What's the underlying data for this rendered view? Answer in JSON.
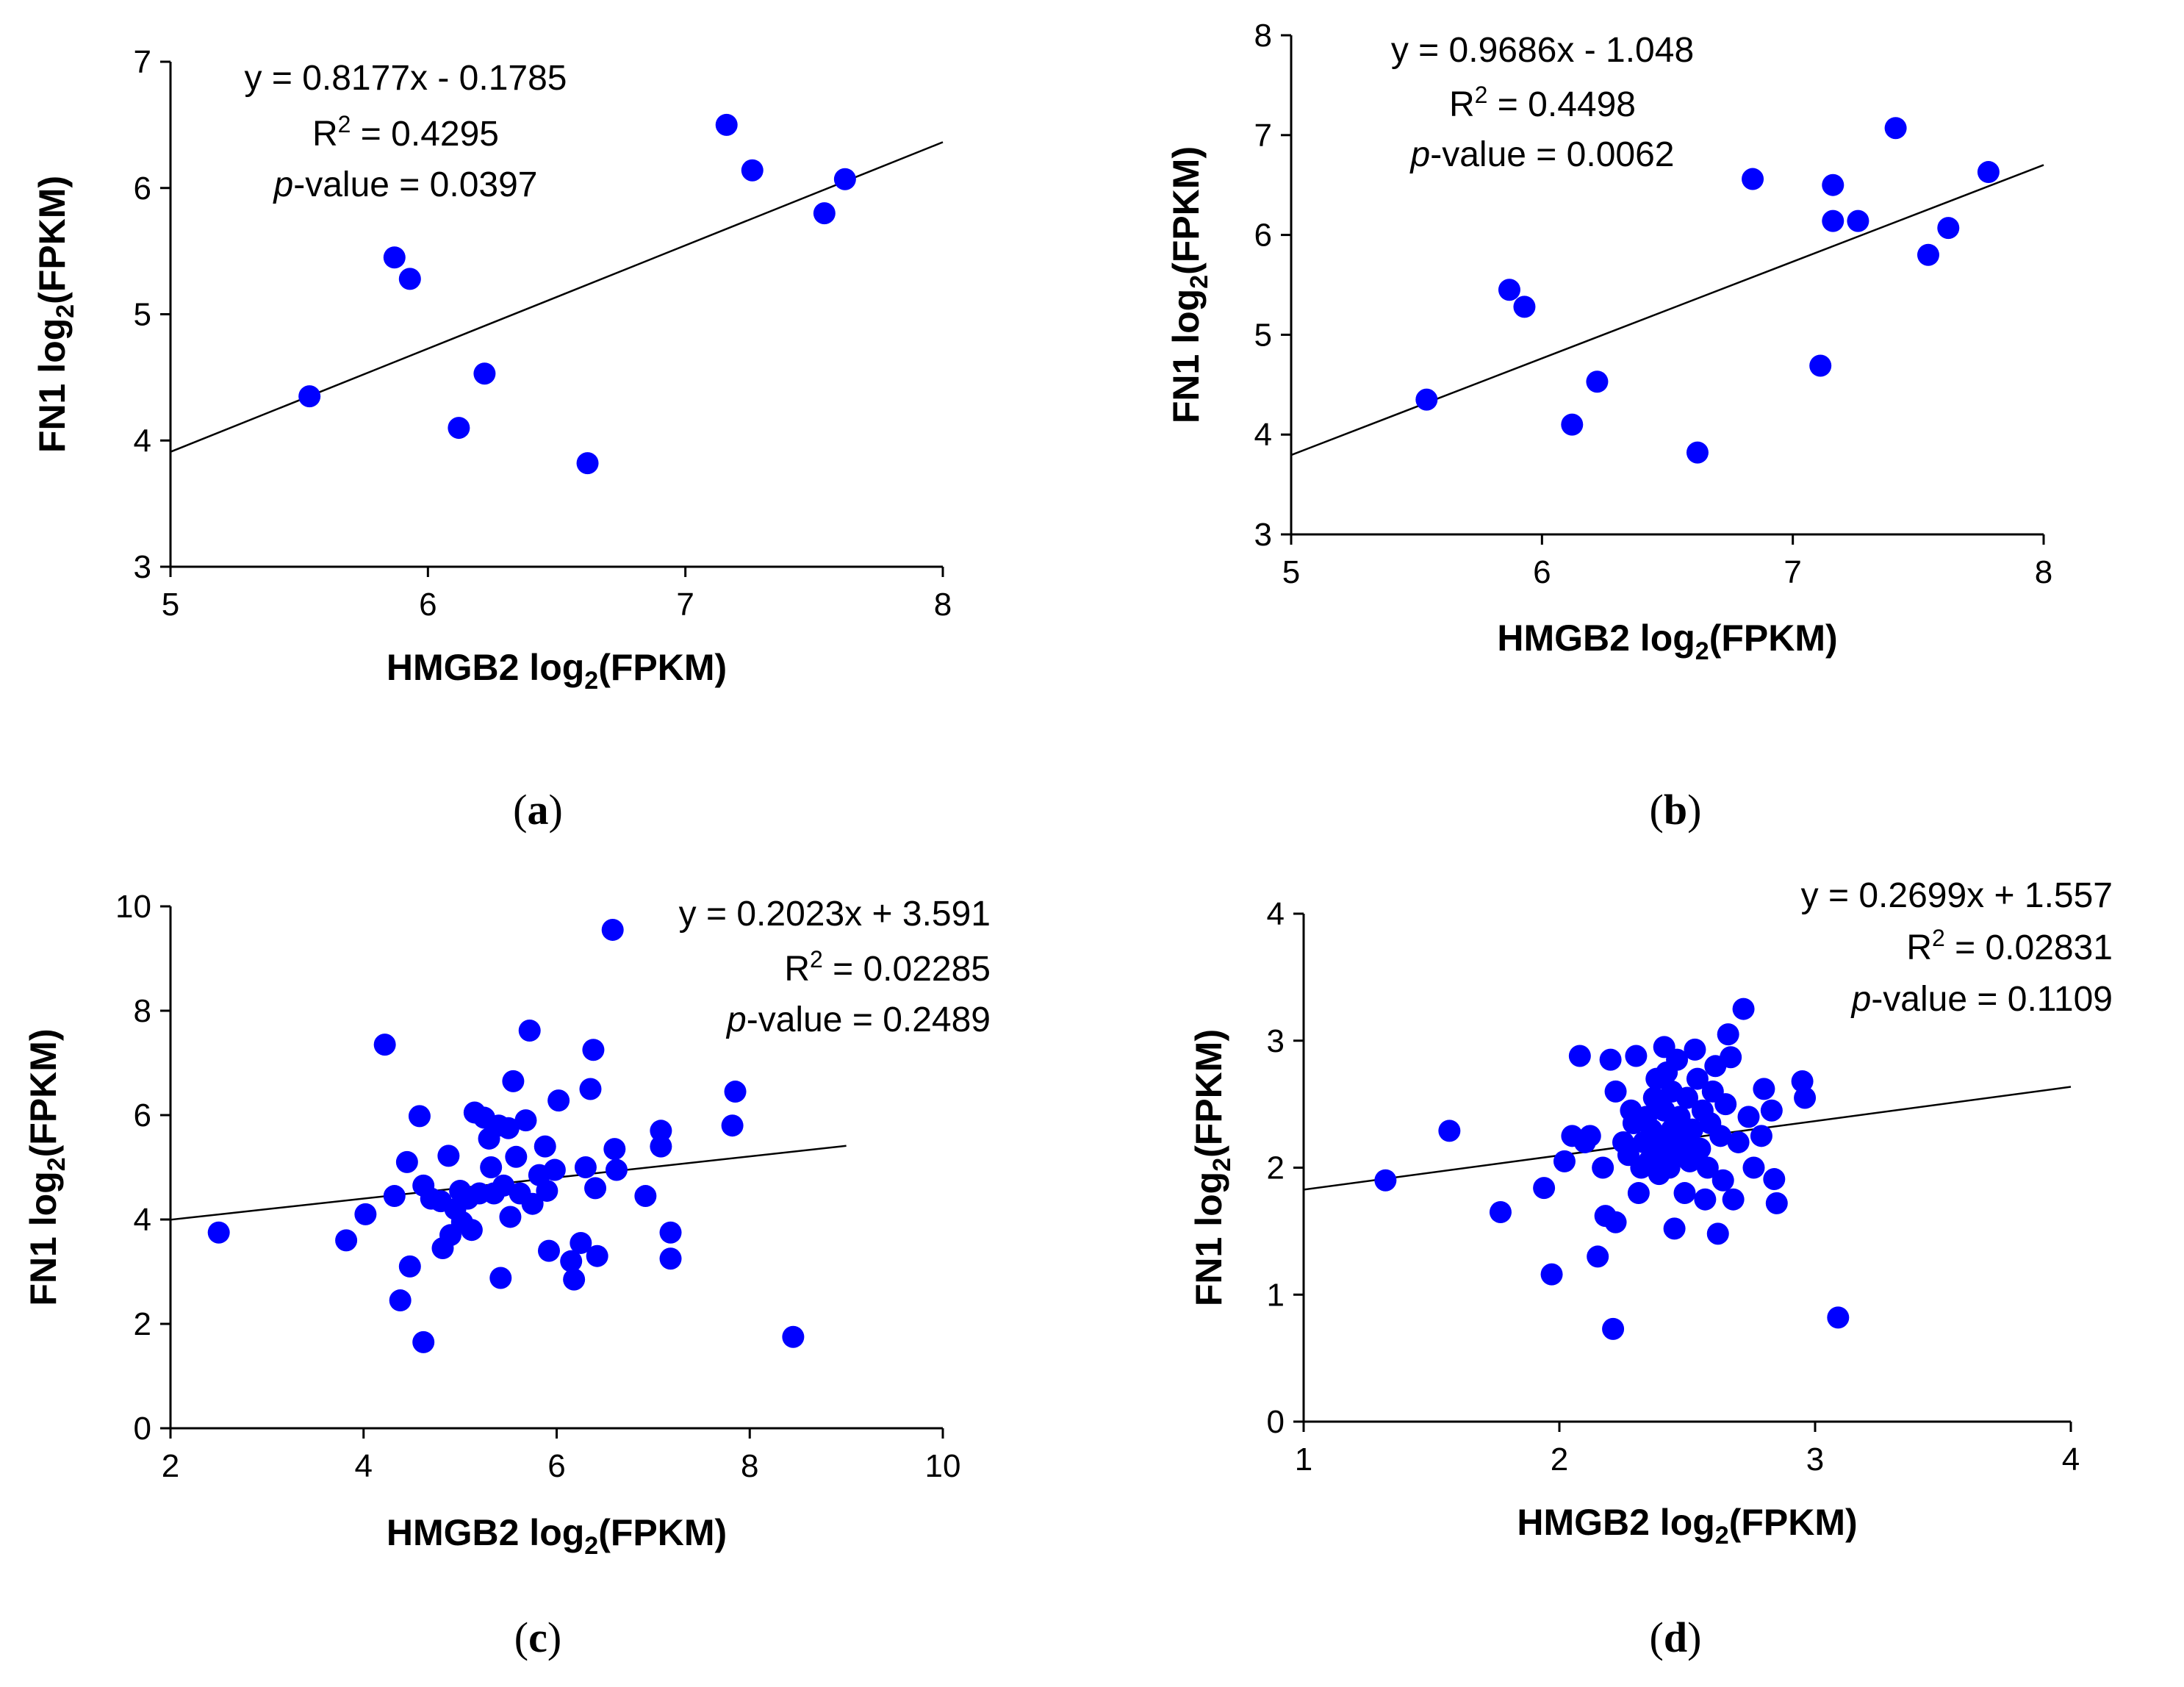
{
  "chart_data": [
    {
      "panel": "a",
      "type": "scatter",
      "caption_letter": "a",
      "xlabel": {
        "pre": "HMGB2 log",
        "sub": "2",
        "post": "(FPKM)"
      },
      "ylabel": {
        "pre": "FN1 log",
        "sub": "2",
        "post": "(FPKM)"
      },
      "xlim": [
        5,
        8
      ],
      "ylim": [
        3,
        7
      ],
      "xticks": [
        5,
        6,
        7,
        8
      ],
      "yticks": [
        3,
        4,
        5,
        6,
        7
      ],
      "fit": {
        "slope": 0.8177,
        "intercept": -0.1785,
        "x_range": [
          5,
          8
        ]
      },
      "annotation": {
        "equation": "y = 0.8177x - 0.1785",
        "r2_label": "R",
        "r2_sup": "2",
        "r2_value": " = 0.4295",
        "p_italic": "p",
        "p_value": "-value = 0.0397"
      },
      "points": [
        [
          5.54,
          4.35
        ],
        [
          5.87,
          5.45
        ],
        [
          5.93,
          5.28
        ],
        [
          6.12,
          4.1
        ],
        [
          6.22,
          4.53
        ],
        [
          6.62,
          3.82
        ],
        [
          7.16,
          6.5
        ],
        [
          7.26,
          6.14
        ],
        [
          7.54,
          5.8
        ],
        [
          7.62,
          6.07
        ]
      ]
    },
    {
      "panel": "b",
      "type": "scatter",
      "caption_letter": "b",
      "xlabel": {
        "pre": "HMGB2 log",
        "sub": "2",
        "post": "(FPKM)"
      },
      "ylabel": {
        "pre": "FN1 log",
        "sub": "2",
        "post": "(FPKM)"
      },
      "xlim": [
        5,
        8
      ],
      "ylim": [
        3,
        8
      ],
      "xticks": [
        5,
        6,
        7,
        8
      ],
      "yticks": [
        3,
        4,
        5,
        6,
        7,
        8
      ],
      "fit": {
        "slope": 0.9686,
        "intercept": -1.048,
        "x_range": [
          5,
          8
        ]
      },
      "annotation": {
        "equation": "y = 0.9686x - 1.048",
        "r2_label": "R",
        "r2_sup": "2",
        "r2_value": " = 0.4498",
        "p_italic": "p",
        "p_value": "-value = 0.0062"
      },
      "points": [
        [
          5.54,
          4.35
        ],
        [
          5.87,
          5.45
        ],
        [
          5.93,
          5.28
        ],
        [
          6.12,
          4.1
        ],
        [
          6.22,
          4.53
        ],
        [
          6.62,
          3.82
        ],
        [
          6.84,
          6.56
        ],
        [
          7.11,
          4.69
        ],
        [
          7.16,
          6.5
        ],
        [
          7.16,
          6.14
        ],
        [
          7.26,
          6.14
        ],
        [
          7.41,
          7.07
        ],
        [
          7.54,
          5.8
        ],
        [
          7.62,
          6.07
        ],
        [
          7.78,
          6.63
        ]
      ]
    },
    {
      "panel": "c",
      "type": "scatter",
      "caption_letter": "c",
      "xlabel": {
        "pre": "HMGB2 log",
        "sub": "2",
        "post": "(FPKM)"
      },
      "ylabel": {
        "pre": "FN1 log",
        "sub": "2",
        "post": "(FPKM)"
      },
      "xlim": [
        2,
        10
      ],
      "ylim": [
        0,
        10
      ],
      "xticks": [
        2,
        4,
        6,
        8,
        10
      ],
      "yticks": [
        0,
        2,
        4,
        6,
        8,
        10
      ],
      "fit": {
        "slope": 0.2023,
        "intercept": 3.591,
        "x_range": [
          2,
          9
        ]
      },
      "annotation": {
        "equation": "y = 0.2023x + 3.591",
        "r2_label": "R",
        "r2_sup": "2",
        "r2_value": " = 0.02285",
        "p_italic": "p",
        "p_value": "-value = 0.2489"
      },
      "points": [
        [
          2.5,
          3.75
        ],
        [
          3.82,
          3.6
        ],
        [
          4.02,
          4.1
        ],
        [
          4.22,
          7.35
        ],
        [
          4.32,
          4.45
        ],
        [
          4.38,
          2.45
        ],
        [
          4.45,
          5.1
        ],
        [
          4.48,
          3.1
        ],
        [
          4.58,
          5.98
        ],
        [
          4.62,
          1.65
        ],
        [
          4.62,
          4.65
        ],
        [
          4.7,
          4.4
        ],
        [
          4.8,
          4.35
        ],
        [
          4.82,
          3.45
        ],
        [
          4.88,
          5.22
        ],
        [
          4.9,
          3.7
        ],
        [
          4.95,
          4.2
        ],
        [
          5.0,
          4.55
        ],
        [
          5.02,
          3.95
        ],
        [
          5.08,
          4.4
        ],
        [
          5.12,
          3.8
        ],
        [
          5.15,
          6.05
        ],
        [
          5.2,
          4.5
        ],
        [
          5.25,
          5.95
        ],
        [
          5.3,
          5.55
        ],
        [
          5.32,
          5.0
        ],
        [
          5.35,
          4.5
        ],
        [
          5.4,
          5.8
        ],
        [
          5.42,
          2.88
        ],
        [
          5.45,
          4.65
        ],
        [
          5.5,
          5.75
        ],
        [
          5.52,
          4.05
        ],
        [
          5.55,
          6.65
        ],
        [
          5.58,
          5.2
        ],
        [
          5.62,
          4.5
        ],
        [
          5.68,
          5.9
        ],
        [
          5.72,
          7.62
        ],
        [
          5.75,
          4.3
        ],
        [
          5.82,
          4.85
        ],
        [
          5.88,
          5.4
        ],
        [
          5.9,
          4.55
        ],
        [
          5.92,
          3.4
        ],
        [
          5.98,
          4.95
        ],
        [
          6.02,
          6.28
        ],
        [
          6.15,
          3.2
        ],
        [
          6.18,
          2.85
        ],
        [
          6.25,
          3.55
        ],
        [
          6.3,
          5.0
        ],
        [
          6.35,
          6.5
        ],
        [
          6.38,
          7.25
        ],
        [
          6.4,
          4.6
        ],
        [
          6.42,
          3.3
        ],
        [
          6.58,
          9.55
        ],
        [
          6.6,
          5.35
        ],
        [
          6.62,
          4.95
        ],
        [
          6.92,
          4.45
        ],
        [
          7.08,
          5.7
        ],
        [
          7.08,
          5.4
        ],
        [
          7.18,
          3.75
        ],
        [
          7.18,
          3.25
        ],
        [
          7.82,
          5.8
        ],
        [
          7.85,
          6.45
        ],
        [
          8.45,
          1.75
        ]
      ]
    },
    {
      "panel": "d",
      "type": "scatter",
      "caption_letter": "d",
      "xlabel": {
        "pre": "HMGB2 log",
        "sub": "2",
        "post": "(FPKM)"
      },
      "ylabel": {
        "pre": "FN1 log",
        "sub": "2",
        "post": "(FPKM)"
      },
      "xlim": [
        1,
        4
      ],
      "ylim": [
        0,
        4
      ],
      "xticks": [
        1,
        2,
        3,
        4
      ],
      "yticks": [
        0,
        1,
        2,
        3,
        4
      ],
      "fit": {
        "slope": 0.2699,
        "intercept": 1.557,
        "x_range": [
          1,
          4
        ]
      },
      "annotation": {
        "equation": "y = 0.2699x + 1.557",
        "r2_label": "R",
        "r2_sup": "2",
        "r2_value": " = 0.02831",
        "p_italic": "p",
        "p_value": "-value = 0.1109"
      },
      "points": [
        [
          1.32,
          1.9
        ],
        [
          1.57,
          2.29
        ],
        [
          1.77,
          1.65
        ],
        [
          1.94,
          1.84
        ],
        [
          1.97,
          1.16
        ],
        [
          2.02,
          2.05
        ],
        [
          2.05,
          2.25
        ],
        [
          2.08,
          2.88
        ],
        [
          2.1,
          2.2
        ],
        [
          2.12,
          2.25
        ],
        [
          2.15,
          1.3
        ],
        [
          2.17,
          2.0
        ],
        [
          2.18,
          1.62
        ],
        [
          2.2,
          2.85
        ],
        [
          2.21,
          0.73
        ],
        [
          2.22,
          1.57
        ],
        [
          2.22,
          2.6
        ],
        [
          2.25,
          2.2
        ],
        [
          2.27,
          2.1
        ],
        [
          2.28,
          2.45
        ],
        [
          2.29,
          2.35
        ],
        [
          2.3,
          2.88
        ],
        [
          2.31,
          1.8
        ],
        [
          2.32,
          2.0
        ],
        [
          2.33,
          2.2
        ],
        [
          2.34,
          2.4
        ],
        [
          2.35,
          2.05
        ],
        [
          2.36,
          2.3
        ],
        [
          2.37,
          2.55
        ],
        [
          2.38,
          2.1
        ],
        [
          2.38,
          2.7
        ],
        [
          2.39,
          1.95
        ],
        [
          2.4,
          2.2
        ],
        [
          2.41,
          2.45
        ],
        [
          2.41,
          2.95
        ],
        [
          2.42,
          2.75
        ],
        [
          2.43,
          2.0
        ],
        [
          2.44,
          2.3
        ],
        [
          2.44,
          2.6
        ],
        [
          2.45,
          1.52
        ],
        [
          2.45,
          2.1
        ],
        [
          2.46,
          2.85
        ],
        [
          2.47,
          2.4
        ],
        [
          2.48,
          2.2
        ],
        [
          2.49,
          1.8
        ],
        [
          2.5,
          2.55
        ],
        [
          2.51,
          2.05
        ],
        [
          2.52,
          2.3
        ],
        [
          2.53,
          2.93
        ],
        [
          2.54,
          2.7
        ],
        [
          2.55,
          2.15
        ],
        [
          2.56,
          2.45
        ],
        [
          2.57,
          1.75
        ],
        [
          2.58,
          2.0
        ],
        [
          2.59,
          2.35
        ],
        [
          2.6,
          2.6
        ],
        [
          2.61,
          2.8
        ],
        [
          2.62,
          1.48
        ],
        [
          2.63,
          2.25
        ],
        [
          2.64,
          1.9
        ],
        [
          2.65,
          2.5
        ],
        [
          2.66,
          3.05
        ],
        [
          2.67,
          2.87
        ],
        [
          2.68,
          1.75
        ],
        [
          2.7,
          2.2
        ],
        [
          2.72,
          3.25
        ],
        [
          2.74,
          2.4
        ],
        [
          2.76,
          2.0
        ],
        [
          2.79,
          2.25
        ],
        [
          2.8,
          2.62
        ],
        [
          2.83,
          2.45
        ],
        [
          2.84,
          1.91
        ],
        [
          2.85,
          1.72
        ],
        [
          2.95,
          2.68
        ],
        [
          2.96,
          2.55
        ],
        [
          3.09,
          0.82
        ]
      ]
    }
  ]
}
